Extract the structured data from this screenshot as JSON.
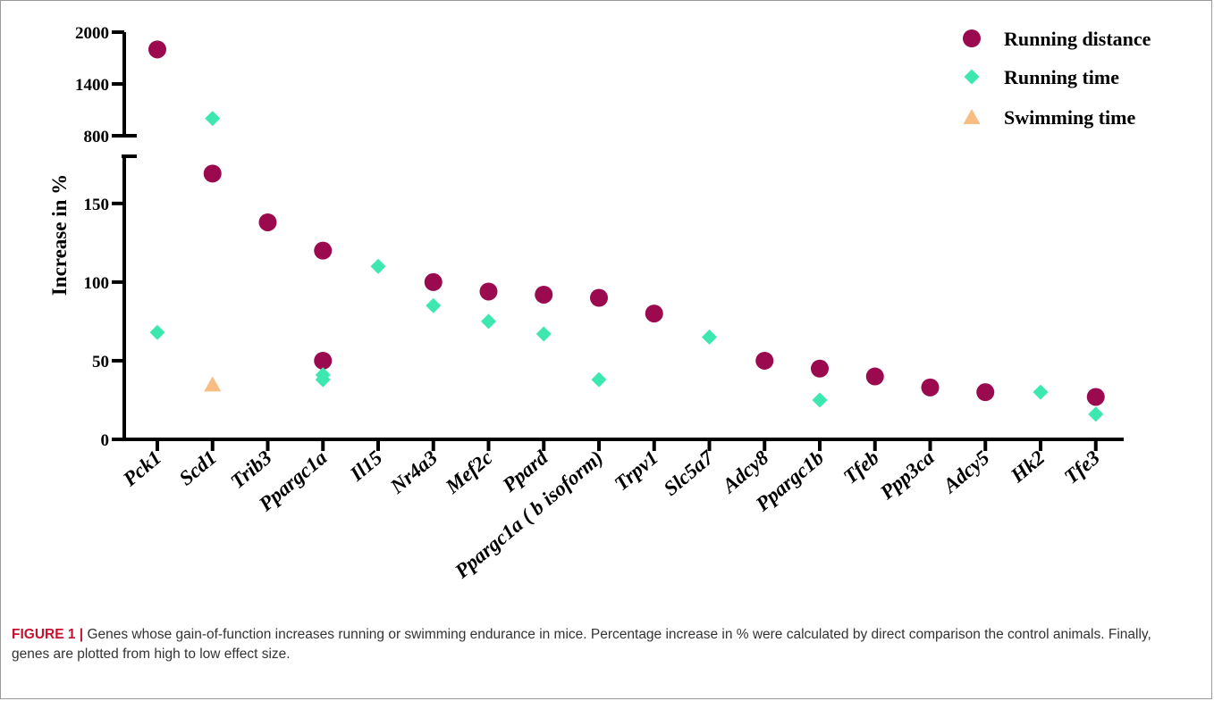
{
  "chart_data": {
    "type": "scatter",
    "ylabel": "Increase in %",
    "y_axis": {
      "broken": true,
      "lower_range": [
        0,
        180
      ],
      "lower_ticks": [
        0,
        50,
        100,
        150
      ],
      "upper_range": [
        800,
        2000
      ],
      "upper_ticks": [
        800,
        1400,
        2000
      ]
    },
    "categories": [
      "Pck1",
      "Scd1",
      "Trib3",
      "Ppargc1a",
      "Il15",
      "Nr4a3",
      "Mef2c",
      "Ppard",
      "Ppargc1a ( b isoform)",
      "Trpv1",
      "Slc5a7",
      "Adcy8",
      "Ppargc1b",
      "Tfeb",
      "Ppp3ca",
      "Adcy5",
      "Hk2",
      "Tfe3"
    ],
    "series": [
      {
        "name": "Running distance",
        "marker": "circle",
        "color": "#9b0a4e",
        "points": [
          {
            "x": "Pck1",
            "y": 1800
          },
          {
            "x": "Scd1",
            "y": 169
          },
          {
            "x": "Trib3",
            "y": 138
          },
          {
            "x": "Ppargc1a",
            "y": 120
          },
          {
            "x": "Ppargc1a",
            "y": 50
          },
          {
            "x": "Nr4a3",
            "y": 100
          },
          {
            "x": "Mef2c",
            "y": 94
          },
          {
            "x": "Ppard",
            "y": 92
          },
          {
            "x": "Ppargc1a ( b isoform)",
            "y": 90
          },
          {
            "x": "Trpv1",
            "y": 80
          },
          {
            "x": "Adcy8",
            "y": 50
          },
          {
            "x": "Ppargc1b",
            "y": 45
          },
          {
            "x": "Tfeb",
            "y": 40
          },
          {
            "x": "Ppp3ca",
            "y": 33
          },
          {
            "x": "Adcy5",
            "y": 30
          },
          {
            "x": "Tfe3",
            "y": 27
          }
        ]
      },
      {
        "name": "Running time",
        "marker": "diamond",
        "color": "#3de8b0",
        "points": [
          {
            "x": "Pck1",
            "y": 68
          },
          {
            "x": "Scd1",
            "y": 1000
          },
          {
            "x": "Ppargc1a",
            "y": 41
          },
          {
            "x": "Ppargc1a",
            "y": 38
          },
          {
            "x": "Il15",
            "y": 110
          },
          {
            "x": "Nr4a3",
            "y": 85
          },
          {
            "x": "Mef2c",
            "y": 75
          },
          {
            "x": "Ppard",
            "y": 67
          },
          {
            "x": "Ppargc1a ( b isoform)",
            "y": 38
          },
          {
            "x": "Slc5a7",
            "y": 65
          },
          {
            "x": "Ppargc1b",
            "y": 25
          },
          {
            "x": "Hk2",
            "y": 30
          },
          {
            "x": "Tfe3",
            "y": 16
          }
        ]
      },
      {
        "name": "Swimming time",
        "marker": "triangle",
        "color": "#f7bd82",
        "points": [
          {
            "x": "Scd1",
            "y": 35
          }
        ]
      }
    ],
    "legend": {
      "position": "top-right"
    }
  },
  "caption": {
    "label": "FIGURE 1 |",
    "text": " Genes whose gain-of-function increases running or swimming endurance in mice. Percentage increase in % were calculated by direct comparison the control animals. Finally, genes are plotted from high to low effect size."
  }
}
